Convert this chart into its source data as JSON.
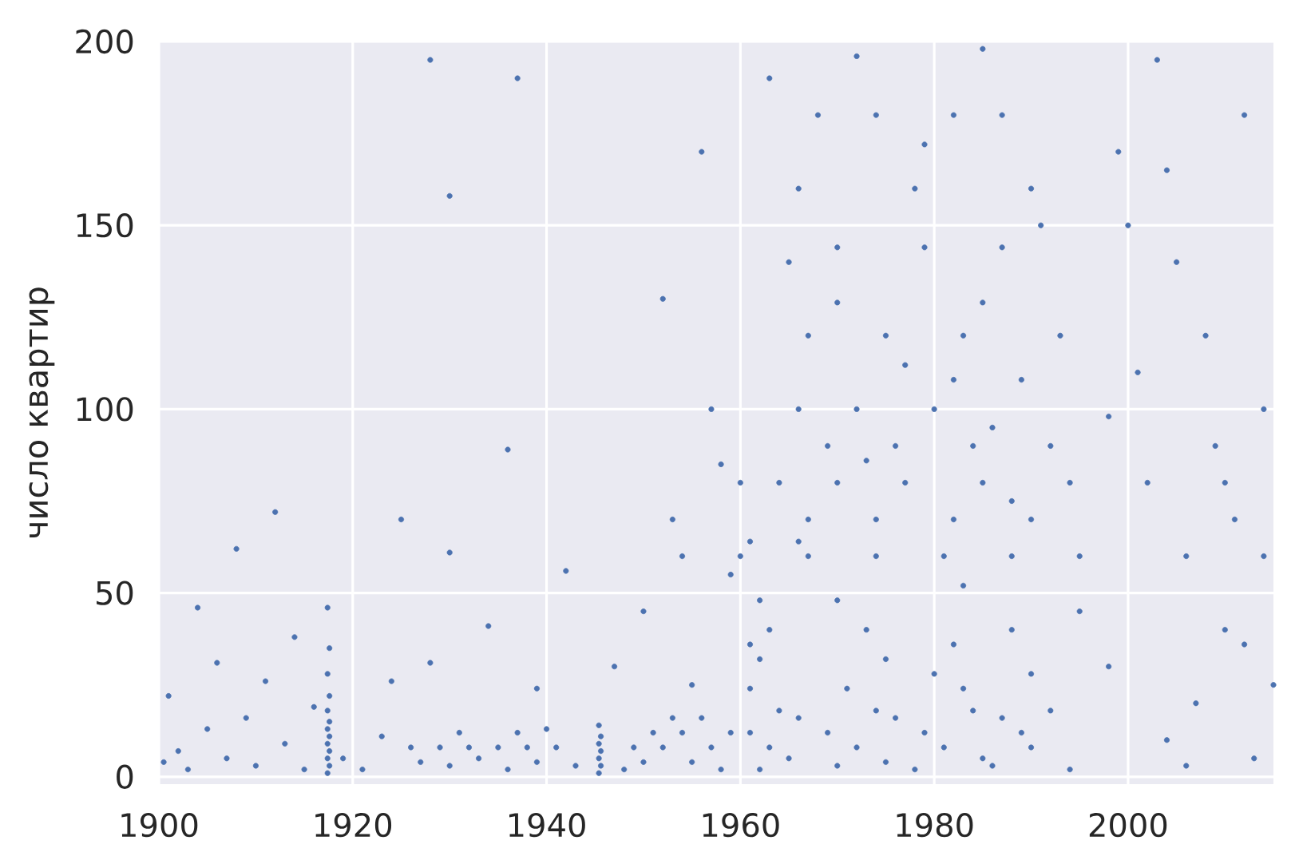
{
  "chart_data": {
    "type": "scatter",
    "ylabel": "число квартир",
    "color": "#4c72b0",
    "marker": "circle",
    "grid": true,
    "xlim": [
      1900,
      2015
    ],
    "ylim": [
      -2,
      200
    ],
    "xticks": [
      1900,
      1920,
      1940,
      1960,
      1980,
      2000
    ],
    "yticks": [
      0,
      50,
      100,
      150,
      200
    ],
    "x": [
      1900.5,
      1901,
      1902,
      1903,
      1904,
      1905,
      1906,
      1907,
      1908,
      1909,
      1910,
      1911,
      1912,
      1913,
      1914,
      1915,
      1916,
      1917.4,
      1917.6,
      1917.4,
      1917.6,
      1917.4,
      1917.6,
      1917.4,
      1917.6,
      1917.4,
      1917.6,
      1917.4,
      1917.6,
      1917.4,
      1919,
      1921,
      1923,
      1924,
      1926,
      1929,
      1932,
      1935,
      1938,
      1941,
      1927,
      1930,
      1933,
      1936,
      1939,
      1943,
      1931,
      1937,
      1940,
      1928,
      1930,
      1934,
      1936,
      1939,
      1942,
      1930,
      1928,
      1937,
      1925,
      1945.4,
      1945.6,
      1945.4,
      1945.6,
      1945.4,
      1945.6,
      1945.4,
      1948,
      1950,
      1952,
      1954,
      1956,
      1958,
      1949,
      1951,
      1953,
      1955,
      1957,
      1959,
      1947,
      1950,
      1953,
      1955,
      1957,
      1959,
      1952,
      1956,
      1958,
      1954,
      1962,
      1970,
      1978,
      1986,
      1994,
      1965,
      1975,
      1985,
      1963,
      1972,
      1981,
      1990,
      1961,
      1969,
      1979,
      1989,
      1966,
      1976,
      1987,
      1964,
      1974,
      1984,
      1992,
      1961,
      1971,
      1983,
      1980,
      1990,
      1962,
      1975,
      1961,
      1982,
      1963,
      1973,
      1988,
      1962,
      1970,
      1960,
      1967,
      1974,
      1981,
      1988,
      1995,
      1961,
      1966,
      1967,
      1974,
      1982,
      1990,
      1960,
      1964,
      1970,
      1977,
      1985,
      1994,
      1969,
      1976,
      1984,
      1992,
      1966,
      1972,
      1980,
      1982,
      1989,
      1967,
      1975,
      1983,
      1993,
      1970,
      1985,
      1970,
      1979,
      1987,
      1966,
      1978,
      1990,
      1968,
      1974,
      1982,
      1987,
      1963,
      1972,
      1979,
      1985,
      1991,
      1977,
      1983,
      1988,
      1973,
      1995,
      1965,
      1986,
      1998,
      2000,
      2002,
      2004,
      2006,
      2008,
      2010,
      2012,
      2014,
      2003,
      2007,
      2011,
      2013,
      2001,
      2005,
      2009,
      2015,
      1999,
      2014,
      2010,
      2012,
      2006,
      1998,
      2004
    ],
    "values": [
      4,
      22,
      7,
      2,
      46,
      13,
      31,
      5,
      62,
      16,
      3,
      26,
      72,
      9,
      38,
      2,
      19,
      1,
      3,
      5,
      7,
      9,
      11,
      13,
      15,
      18,
      22,
      28,
      35,
      46,
      5,
      2,
      11,
      26,
      8,
      8,
      8,
      8,
      8,
      8,
      4,
      3,
      5,
      2,
      4,
      3,
      12,
      12,
      13,
      31,
      61,
      41,
      89,
      24,
      56,
      158,
      195,
      190,
      70,
      1,
      3,
      5,
      7,
      9,
      11,
      14,
      2,
      4,
      8,
      12,
      16,
      2,
      8,
      12,
      16,
      4,
      8,
      12,
      30,
      45,
      70,
      25,
      100,
      55,
      130,
      170,
      85,
      60,
      2,
      3,
      2,
      3,
      2,
      5,
      4,
      5,
      8,
      8,
      8,
      8,
      12,
      12,
      12,
      12,
      16,
      16,
      16,
      18,
      18,
      18,
      18,
      24,
      24,
      24,
      28,
      28,
      32,
      32,
      36,
      36,
      40,
      40,
      40,
      48,
      48,
      60,
      60,
      60,
      60,
      60,
      60,
      64,
      64,
      70,
      70,
      70,
      70,
      80,
      80,
      80,
      80,
      80,
      80,
      90,
      90,
      90,
      90,
      100,
      100,
      100,
      108,
      108,
      120,
      120,
      120,
      120,
      129,
      129,
      144,
      144,
      144,
      160,
      160,
      160,
      180,
      180,
      180,
      180,
      190,
      196,
      172,
      198,
      150,
      112,
      52,
      75,
      86,
      45,
      140,
      95,
      30,
      150,
      80,
      10,
      60,
      120,
      40,
      180,
      100,
      195,
      20,
      70,
      5,
      110,
      140,
      90,
      25,
      170,
      60,
      80,
      36,
      3,
      98,
      165
    ]
  }
}
